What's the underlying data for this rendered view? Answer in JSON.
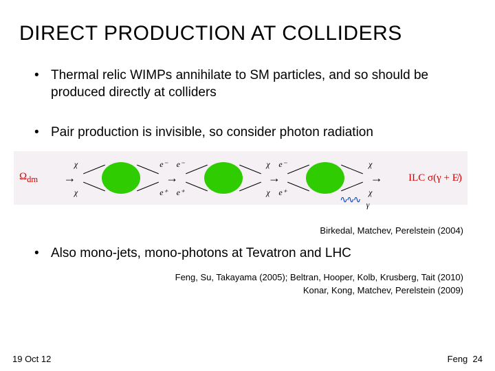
{
  "title": "DIRECT PRODUCTION AT COLLIDERS",
  "bullets": {
    "b1": "Thermal relic WIMPs annihilate to SM particles, and so should be produced directly at colliders",
    "b2": "Pair production is invisible, so consider photon radiation",
    "b3": "Also mono-jets, mono-photons at Tevatron and LHC"
  },
  "diagram": {
    "omega_label": "Ω",
    "omega_sub": "dm",
    "ilc_label": "ILC σ(γ + E̸)",
    "arrow": "→",
    "blobs": [
      {
        "color": "#2ecc00",
        "tl": "χ",
        "bl": "χ",
        "tr": "e⁻",
        "br": "e⁺",
        "photon": false
      },
      {
        "color": "#2ecc00",
        "tl": "e⁻",
        "bl": "e⁺",
        "tr": "χ",
        "br": "χ",
        "photon": false
      },
      {
        "color": "#2ecc00",
        "tl": "e⁻",
        "bl": "e⁺",
        "tr": "χ",
        "br": "χ",
        "photon": true,
        "photon_label": "γ"
      }
    ]
  },
  "citations": {
    "c1": "Birkedal, Matchev, Perelstein (2004)",
    "c2": "Feng, Su, Takayama (2005); Beltran, Hooper, Kolb, Krusberg, Tait (2010)",
    "c3": "Konar, Kong, Matchev, Perelstein (2009)"
  },
  "footer": {
    "date": "19 Oct 12",
    "author": "Feng",
    "page": "24"
  }
}
